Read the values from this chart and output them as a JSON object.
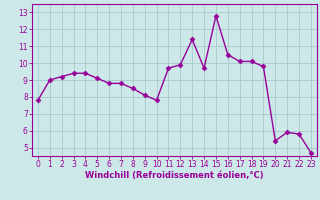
{
  "x": [
    0,
    1,
    2,
    3,
    4,
    5,
    6,
    7,
    8,
    9,
    10,
    11,
    12,
    13,
    14,
    15,
    16,
    17,
    18,
    19,
    20,
    21,
    22,
    23
  ],
  "y": [
    7.8,
    9.0,
    9.2,
    9.4,
    9.4,
    9.1,
    8.8,
    8.8,
    8.5,
    8.1,
    7.8,
    9.7,
    9.9,
    11.4,
    9.7,
    12.8,
    10.5,
    10.1,
    10.1,
    9.8,
    5.4,
    5.9,
    5.8,
    4.7
  ],
  "line_color": "#990099",
  "marker": "D",
  "marker_size": 2.5,
  "bg_color": "#cce8e8",
  "grid_color": "#aacece",
  "axis_label_color": "#990099",
  "tick_color": "#990099",
  "xlabel": "Windchill (Refroidissement éolien,°C)",
  "xlim": [
    -0.5,
    23.5
  ],
  "ylim": [
    4.5,
    13.5
  ],
  "xticks": [
    0,
    1,
    2,
    3,
    4,
    5,
    6,
    7,
    8,
    9,
    10,
    11,
    12,
    13,
    14,
    15,
    16,
    17,
    18,
    19,
    20,
    21,
    22,
    23
  ],
  "yticks": [
    5,
    6,
    7,
    8,
    9,
    10,
    11,
    12,
    13
  ],
  "spine_color": "#990099",
  "linewidth": 1.0,
  "tick_fontsize": 5.5,
  "xlabel_fontsize": 6.0
}
